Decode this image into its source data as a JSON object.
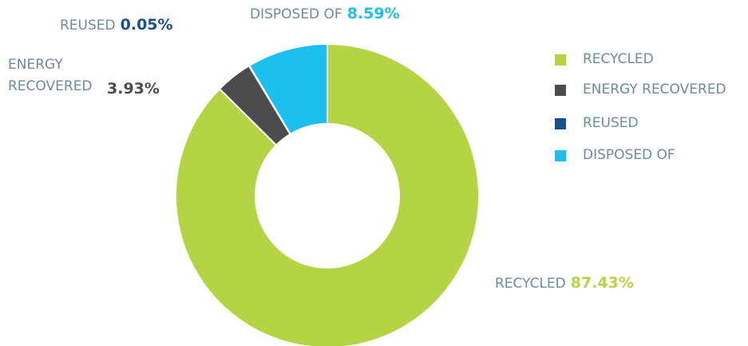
{
  "chart_data": {
    "type": "donut",
    "categories": [
      "RECYCLED",
      "ENERGY RECOVERED",
      "REUSED",
      "DISPOSED OF"
    ],
    "values": [
      87.43,
      3.93,
      0.05,
      8.59
    ],
    "value_labels": [
      "87.43%",
      "3.93%",
      "0.05%",
      "8.59%"
    ],
    "colors": [
      "#b5d444",
      "#4a4c4e",
      "#1a4f8f",
      "#1cc0ee"
    ],
    "legend": "right"
  }
}
